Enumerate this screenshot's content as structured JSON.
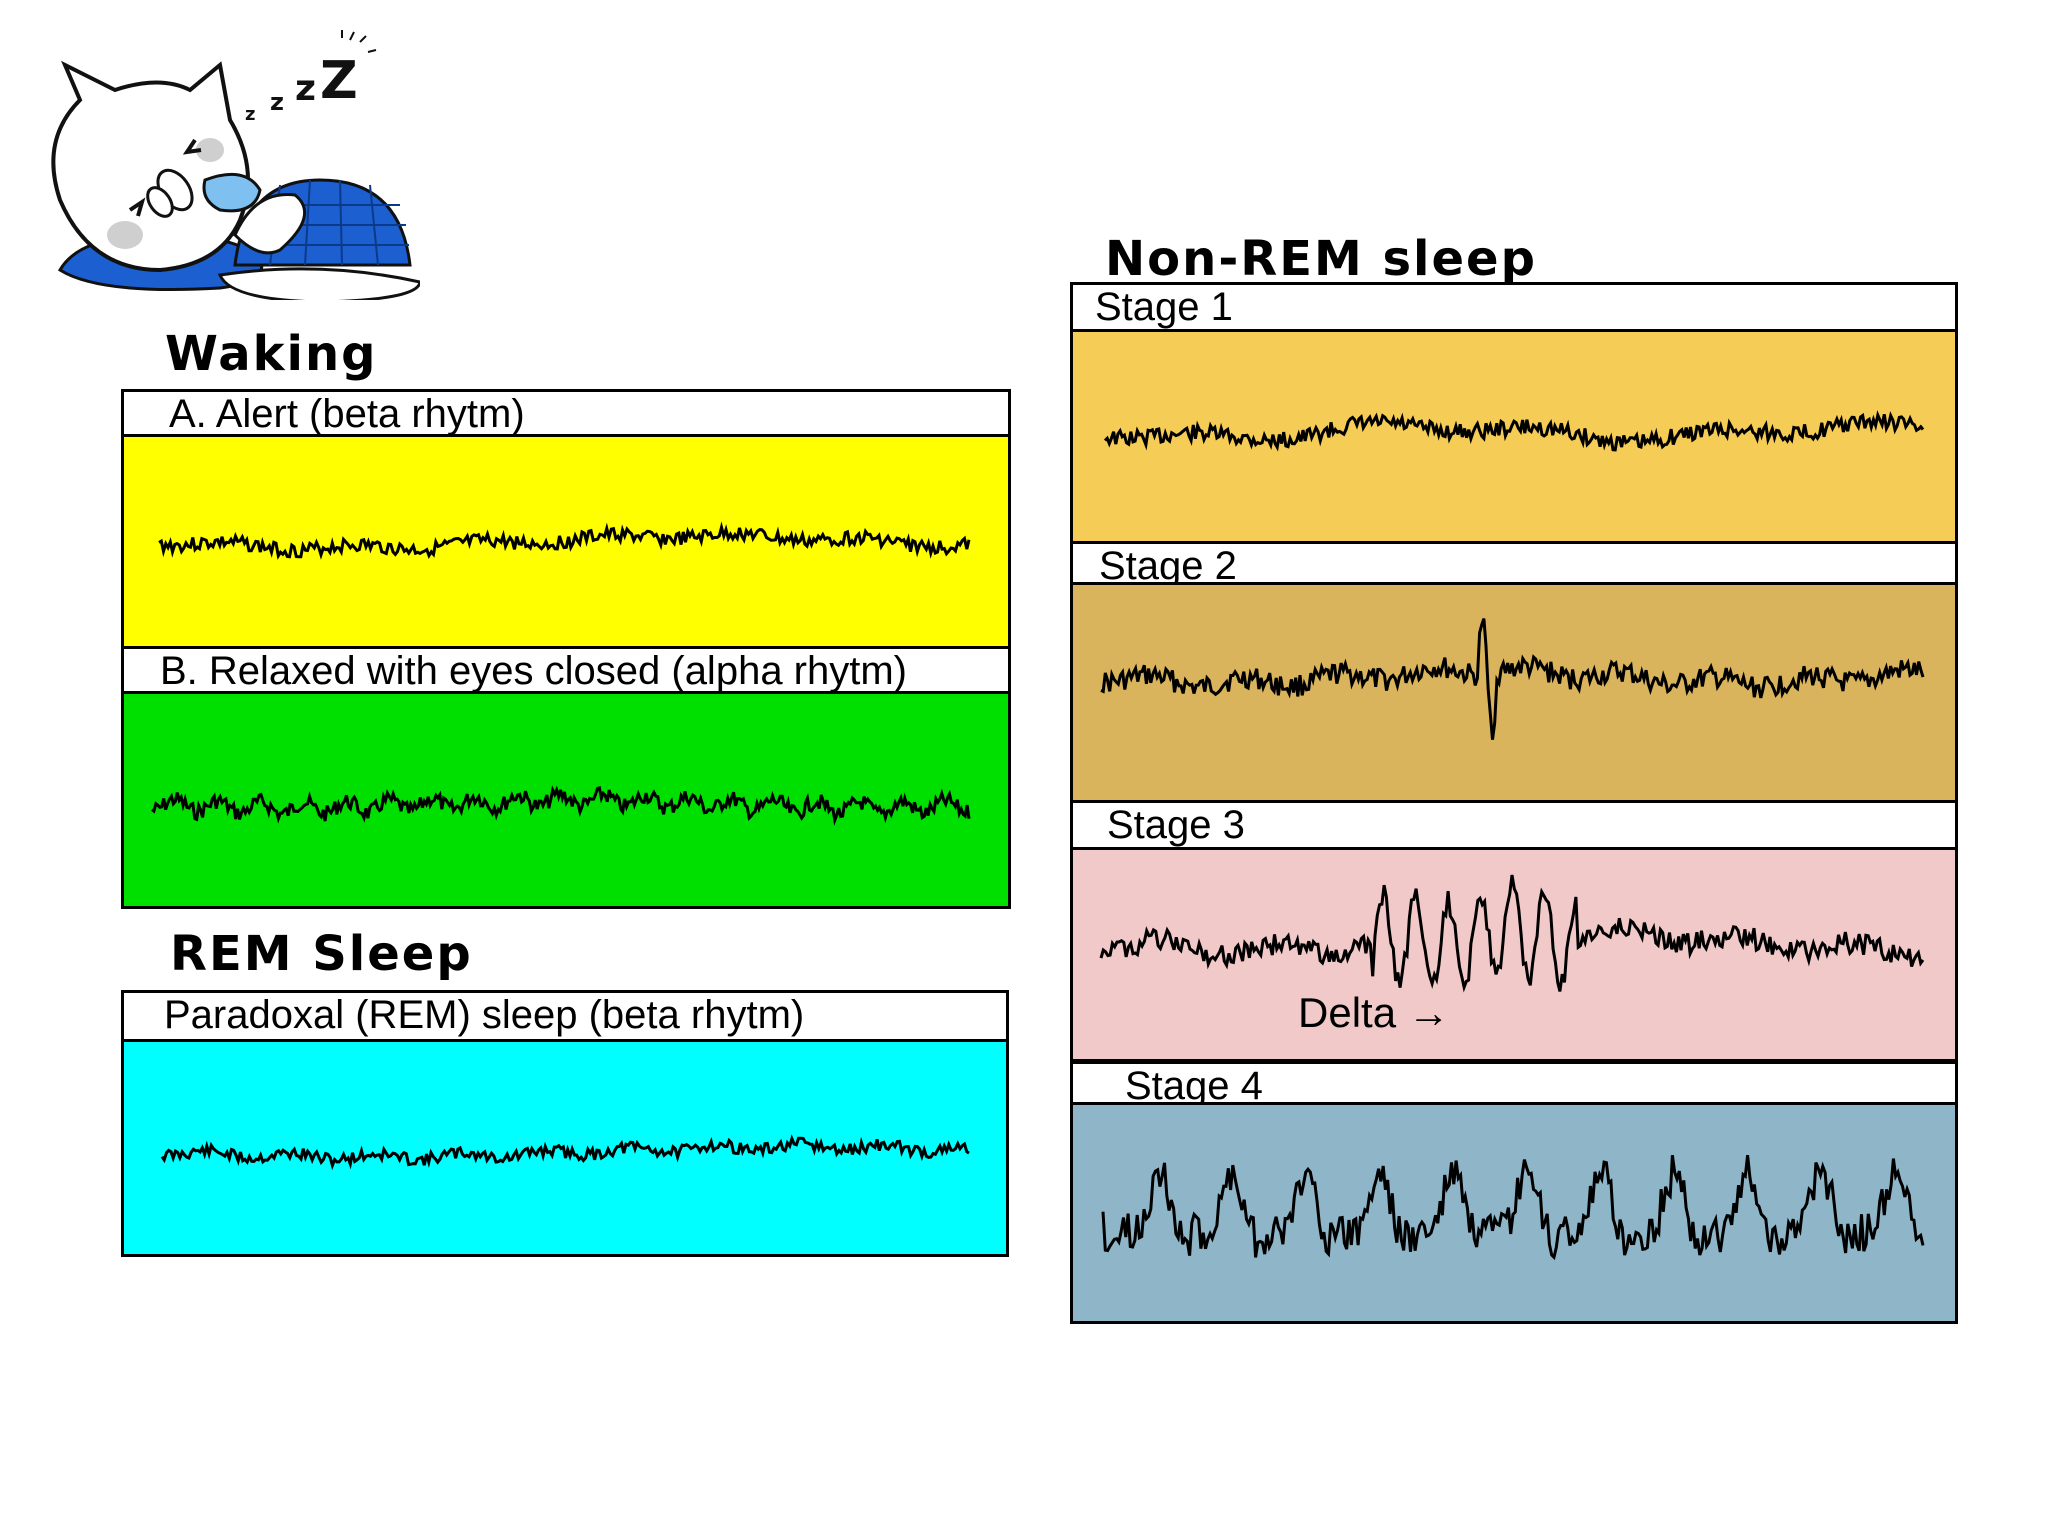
{
  "waking": {
    "title": "Waking",
    "alert_label": "A. Alert (beta rhytm)",
    "relaxed_label": "B. Relaxed with eyes closed (alpha rhytm)"
  },
  "rem": {
    "title": "REM Sleep",
    "label": "Paradoxal (REM) sleep (beta rhytm)"
  },
  "nonrem": {
    "title": "Non-REM sleep",
    "stage1_label": "Stage 1",
    "stage2_label": "Stage 2",
    "stage3_label": "Stage 3",
    "stage4_label": "Stage 4",
    "delta_label": "Delta →"
  },
  "colors": {
    "alert": "#ffff00",
    "relaxed": "#00e000",
    "rem": "#00ffff",
    "stage1": "#f5cc55",
    "stage2": "#d9b45c",
    "stage3": "#f1c9c9",
    "stage4": "#8fb6c8",
    "trace": "#000000",
    "mascot_blue": "#1b5fd0"
  },
  "mascot_icon": "sleeping-cat-icon",
  "mascot_snore": "zzZ"
}
